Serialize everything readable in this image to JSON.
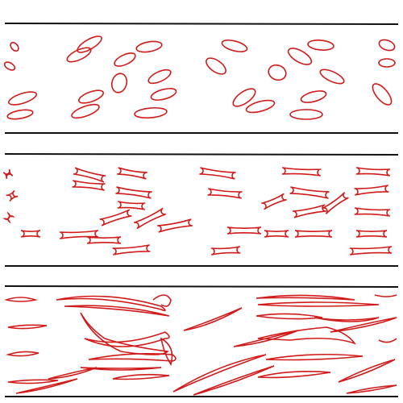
{
  "colors": {
    "background": "#ffffff",
    "channel_wall": "#111111",
    "vesicle_outline": "#d11a1a"
  },
  "panels": [
    {
      "label": "",
      "shape": "ellipse"
    },
    {
      "label": "",
      "shape": "dumbbell"
    },
    {
      "label": "",
      "shape": "elongated-thread"
    }
  ]
}
